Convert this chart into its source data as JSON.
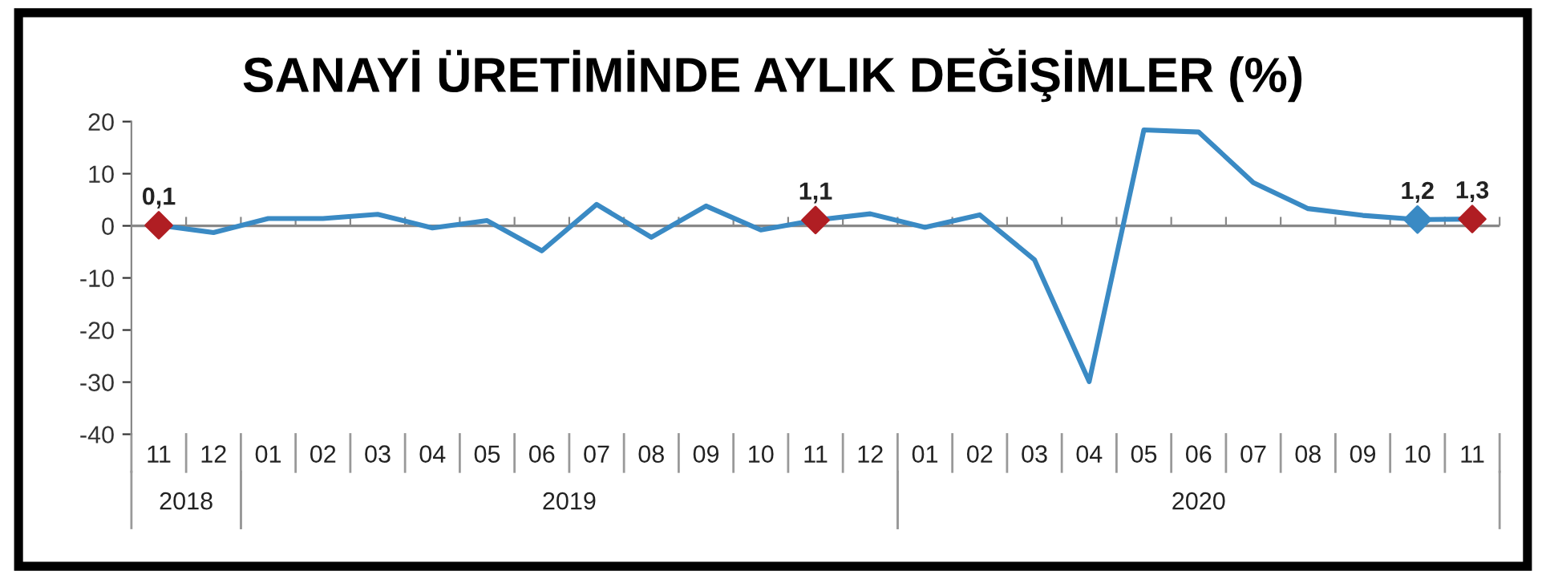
{
  "chart_data": {
    "type": "line",
    "title": "SANAYİ ÜRETİMİNDE AYLIK DEĞİŞİMLER (%)",
    "categories": [
      "11",
      "12",
      "01",
      "02",
      "03",
      "04",
      "05",
      "06",
      "07",
      "08",
      "09",
      "10",
      "11",
      "12",
      "01",
      "02",
      "03",
      "04",
      "05",
      "06",
      "07",
      "08",
      "09",
      "10",
      "11"
    ],
    "annotations": [
      "2018",
      "2019",
      "2020"
    ],
    "ref_lines": [
      {
        "axis": "y",
        "value": 0,
        "color": "#888888"
      }
    ],
    "series": [
      {
        "color": "#3a8ac4",
        "values": [
          0.1,
          -1.3,
          1.4,
          1.4,
          2.2,
          -0.4,
          1.0,
          -4.8,
          4.1,
          -2.2,
          3.8,
          -0.8,
          1.1,
          2.3,
          -0.3,
          2.1,
          -6.5,
          -29.9,
          18.4,
          18.0,
          8.3,
          3.3,
          2.0,
          1.2,
          1.3
        ]
      },
      {
        "type": "scatter",
        "marker": "diamond",
        "colors": [
          "#b01e23",
          null,
          null,
          null,
          null,
          null,
          null,
          null,
          null,
          null,
          null,
          null,
          "#b01e23",
          null,
          null,
          null,
          null,
          null,
          null,
          null,
          null,
          null,
          null,
          "#3a8ac4",
          "#b01e23"
        ],
        "values": [
          0.1,
          null,
          null,
          null,
          null,
          null,
          null,
          null,
          null,
          null,
          null,
          null,
          1.1,
          null,
          null,
          null,
          null,
          null,
          null,
          null,
          null,
          null,
          null,
          1.2,
          1.3
        ],
        "value_labels": [
          "0,1",
          null,
          null,
          null,
          null,
          null,
          null,
          null,
          null,
          null,
          null,
          null,
          "1,1",
          null,
          null,
          null,
          null,
          null,
          null,
          null,
          null,
          null,
          null,
          "1,2",
          "1,3"
        ]
      }
    ],
    "ylim": [
      -40,
      20
    ],
    "yticks": [
      -40,
      -30,
      -20,
      -10,
      0,
      10,
      20
    ],
    "grid": false,
    "legend": false,
    "marker": "none",
    "line_style": "solid"
  }
}
